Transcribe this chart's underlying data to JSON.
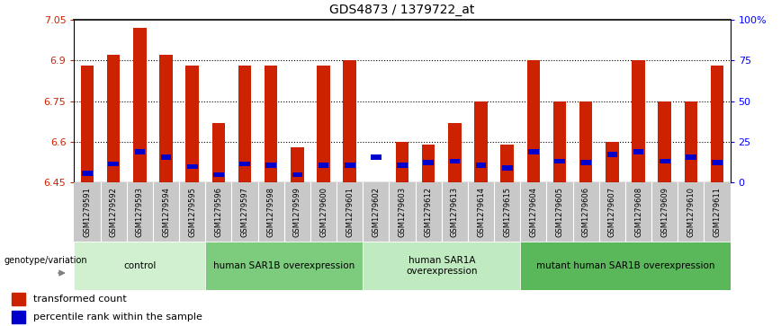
{
  "title": "GDS4873 / 1379722_at",
  "samples": [
    "GSM1279591",
    "GSM1279592",
    "GSM1279593",
    "GSM1279594",
    "GSM1279595",
    "GSM1279596",
    "GSM1279597",
    "GSM1279598",
    "GSM1279599",
    "GSM1279600",
    "GSM1279601",
    "GSM1279602",
    "GSM1279603",
    "GSM1279612",
    "GSM1279613",
    "GSM1279614",
    "GSM1279615",
    "GSM1279604",
    "GSM1279605",
    "GSM1279606",
    "GSM1279607",
    "GSM1279608",
    "GSM1279609",
    "GSM1279610",
    "GSM1279611"
  ],
  "red_values": [
    6.88,
    6.92,
    7.02,
    6.92,
    6.88,
    6.67,
    6.88,
    6.88,
    6.58,
    6.88,
    6.9,
    6.45,
    6.6,
    6.59,
    6.67,
    6.75,
    6.59,
    6.9,
    6.75,
    6.75,
    6.6,
    6.9,
    6.75,
    6.75,
    6.88
  ],
  "blue_values": [
    6.475,
    6.51,
    6.555,
    6.535,
    6.5,
    6.47,
    6.51,
    6.505,
    6.47,
    6.505,
    6.505,
    6.535,
    6.505,
    6.515,
    6.52,
    6.505,
    6.495,
    6.555,
    6.52,
    6.515,
    6.545,
    6.555,
    6.52,
    6.535,
    6.515
  ],
  "ymin": 6.45,
  "ymax": 7.05,
  "yticks": [
    6.45,
    6.6,
    6.75,
    6.9,
    7.05
  ],
  "ytick_labels": [
    "6.45",
    "6.6",
    "6.75",
    "6.9",
    "7.05"
  ],
  "right_yticks": [
    0,
    25,
    50,
    75,
    100
  ],
  "right_ytick_labels": [
    "0",
    "25",
    "50",
    "75",
    "100%"
  ],
  "groups": [
    {
      "label": "control",
      "start": 0,
      "end": 5,
      "color": "#d0f0d0"
    },
    {
      "label": "human SAR1B overexpression",
      "start": 5,
      "end": 11,
      "color": "#7dcc7d"
    },
    {
      "label": "human SAR1A\noverexpression",
      "start": 11,
      "end": 17,
      "color": "#c0eac0"
    },
    {
      "label": "mutant human SAR1B overexpression",
      "start": 17,
      "end": 25,
      "color": "#5ab85a"
    }
  ],
  "legend_label_red": "transformed count",
  "legend_label_blue": "percentile rank within the sample",
  "bar_color_red": "#cc2200",
  "bar_color_blue": "#0000cc",
  "bar_width": 0.5,
  "blue_bar_height": 0.018,
  "blue_bar_width": 0.4
}
